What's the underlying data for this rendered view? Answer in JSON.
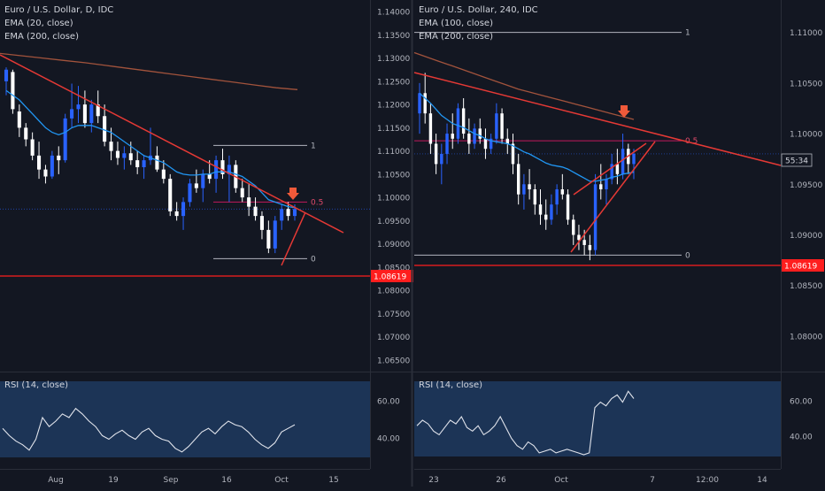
{
  "chart_data": [
    {
      "type": "candlestick",
      "title": "Euro / U.S. Dollar, D, IDC",
      "indicators": [
        "EMA (20, close)",
        "EMA (200, close)"
      ],
      "x_ticks": [
        "Aug",
        "19",
        "Sep",
        "16",
        "Oct",
        "15"
      ],
      "y_ticks": [
        "1.14000",
        "1.13500",
        "1.13000",
        "1.12500",
        "1.12000",
        "1.11500",
        "1.11000",
        "1.10500",
        "1.10000",
        "1.09500",
        "1.09000",
        "1.08500",
        "1.08000",
        "1.07500",
        "1.07000",
        "1.06500"
      ],
      "ylim": [
        1.0625,
        1.1425
      ],
      "price_label": "1.08619",
      "fib_labels": [
        "1",
        "0.5",
        "0"
      ],
      "fib_levels": [
        1.1112,
        1.099,
        1.0868
      ],
      "candles": [
        [
          1.125,
          1.128,
          1.122,
          1.1275
        ],
        [
          1.127,
          1.1275,
          1.118,
          1.119
        ],
        [
          1.1185,
          1.12,
          1.113,
          1.115
        ],
        [
          1.115,
          1.116,
          1.111,
          1.1125
        ],
        [
          1.1125,
          1.114,
          1.108,
          1.109
        ],
        [
          1.109,
          1.112,
          1.104,
          1.106
        ],
        [
          1.106,
          1.107,
          1.103,
          1.1045
        ],
        [
          1.1045,
          1.11,
          1.104,
          1.109
        ],
        [
          1.109,
          1.111,
          1.105,
          1.108
        ],
        [
          1.108,
          1.118,
          1.1075,
          1.117
        ],
        [
          1.117,
          1.1245,
          1.115,
          1.119
        ],
        [
          1.119,
          1.124,
          1.116,
          1.12
        ],
        [
          1.12,
          1.123,
          1.115,
          1.116
        ],
        [
          1.116,
          1.121,
          1.114,
          1.12
        ],
        [
          1.12,
          1.123,
          1.116,
          1.1175
        ],
        [
          1.1175,
          1.12,
          1.111,
          1.112
        ],
        [
          1.112,
          1.115,
          1.108,
          1.11
        ],
        [
          1.11,
          1.112,
          1.107,
          1.1085
        ],
        [
          1.1085,
          1.111,
          1.106,
          1.1095
        ],
        [
          1.1095,
          1.112,
          1.107,
          1.108
        ],
        [
          1.108,
          1.11,
          1.105,
          1.1065
        ],
        [
          1.1065,
          1.109,
          1.104,
          1.108
        ],
        [
          1.108,
          1.115,
          1.107,
          1.109
        ],
        [
          1.109,
          1.111,
          1.1055,
          1.106
        ],
        [
          1.106,
          1.108,
          1.103,
          1.104
        ],
        [
          1.104,
          1.105,
          1.096,
          1.097
        ],
        [
          1.097,
          1.099,
          1.095,
          1.096
        ],
        [
          1.096,
          1.1,
          1.093,
          1.099
        ],
        [
          1.099,
          1.104,
          1.098,
          1.103
        ],
        [
          1.103,
          1.106,
          1.101,
          1.102
        ],
        [
          1.102,
          1.106,
          1.099,
          1.105
        ],
        [
          1.105,
          1.108,
          1.103,
          1.104
        ],
        [
          1.104,
          1.109,
          1.101,
          1.108
        ],
        [
          1.108,
          1.1105,
          1.104,
          1.105
        ],
        [
          1.105,
          1.109,
          1.099,
          1.107
        ],
        [
          1.107,
          1.108,
          1.101,
          1.102
        ],
        [
          1.102,
          1.104,
          1.099,
          1.1
        ],
        [
          1.1,
          1.103,
          1.096,
          1.098
        ],
        [
          1.098,
          1.1,
          1.095,
          1.096
        ],
        [
          1.096,
          1.097,
          1.091,
          1.093
        ],
        [
          1.093,
          1.095,
          1.088,
          1.089
        ],
        [
          1.089,
          1.096,
          1.088,
          1.095
        ],
        [
          1.095,
          1.0985,
          1.093,
          1.0975
        ],
        [
          1.0975,
          1.099,
          1.095,
          1.096
        ],
        [
          1.096,
          1.0985,
          1.095,
          1.0975
        ]
      ],
      "ema20": [
        1.123,
        1.122,
        1.121,
        1.1195,
        1.118,
        1.1165,
        1.115,
        1.114,
        1.1135,
        1.114,
        1.115,
        1.1155,
        1.1155,
        1.1155,
        1.115,
        1.1145,
        1.114,
        1.113,
        1.112,
        1.111,
        1.11,
        1.109,
        1.1085,
        1.108,
        1.1075,
        1.1065,
        1.1055,
        1.105,
        1.1048,
        1.1048,
        1.105,
        1.105,
        1.1055,
        1.1055,
        1.1055,
        1.105,
        1.1045,
        1.1035,
        1.1025,
        1.101,
        1.0995,
        1.099,
        1.0985,
        1.098,
        1.0978
      ],
      "ema200": [
        1.131,
        1.1305,
        1.13,
        1.1295,
        1.129,
        1.1284,
        1.1278,
        1.1272,
        1.1266,
        1.126,
        1.1254,
        1.1248,
        1.1242,
        1.1236,
        1.1232
      ],
      "rsi": [
        44,
        40,
        37,
        35,
        32,
        38,
        50,
        45,
        48,
        52,
        50,
        55,
        52,
        48,
        45,
        40,
        38,
        41,
        43,
        40,
        38,
        42,
        44,
        40,
        38,
        37,
        33,
        31,
        34,
        38,
        42,
        44,
        41,
        45,
        48,
        46,
        45,
        42,
        38,
        35,
        33,
        36,
        42,
        44,
        46
      ],
      "rsi_ticks": [
        "60.00",
        "40.00"
      ]
    },
    {
      "type": "candlestick",
      "title": "Euro / U.S. Dollar, 240, IDC",
      "indicators": [
        "EMA (100, close)",
        "EMA (200, close)"
      ],
      "x_ticks": [
        "23",
        "26",
        "Oct",
        "7",
        "12:00",
        "14"
      ],
      "y_ticks": [
        "1.11000",
        "1.10500",
        "1.10000",
        "1.09500",
        "1.09000",
        "1.08500",
        "1.08000"
      ],
      "ylim": [
        1.0765,
        1.1132
      ],
      "price_label": "1.08619",
      "time_label": "55:34",
      "fib_labels": [
        "1",
        "0.5",
        "0"
      ],
      "fib_levels": [
        1.11,
        1.0993,
        1.088
      ],
      "candles": [
        [
          1.102,
          1.105,
          1.1,
          1.104
        ],
        [
          1.104,
          1.106,
          1.101,
          1.102
        ],
        [
          1.102,
          1.103,
          1.098,
          1.099
        ],
        [
          1.099,
          1.1,
          1.096,
          1.097
        ],
        [
          1.097,
          1.099,
          1.095,
          1.098
        ],
        [
          1.098,
          1.101,
          1.097,
          1.1
        ],
        [
          1.1,
          1.102,
          1.0985,
          1.0995
        ],
        [
          1.0995,
          1.103,
          1.099,
          1.1025
        ],
        [
          1.1025,
          1.1035,
          1.0995,
          1.1
        ],
        [
          1.1,
          1.1015,
          1.098,
          1.099
        ],
        [
          1.099,
          1.101,
          1.0985,
          1.1005
        ],
        [
          1.1005,
          1.1015,
          1.099,
          1.0995
        ],
        [
          1.0995,
          1.1005,
          1.0975,
          1.0985
        ],
        [
          1.0985,
          1.1,
          1.098,
          1.0995
        ],
        [
          1.0995,
          1.103,
          1.099,
          1.102
        ],
        [
          1.102,
          1.1025,
          1.099,
          1.0995
        ],
        [
          1.0995,
          1.1005,
          1.098,
          1.099
        ],
        [
          1.099,
          1.1,
          1.096,
          1.097
        ],
        [
          1.097,
          1.098,
          1.093,
          1.094
        ],
        [
          1.094,
          1.096,
          1.0925,
          1.095
        ],
        [
          1.095,
          1.0965,
          1.0935,
          1.0945
        ],
        [
          1.0945,
          1.095,
          1.092,
          1.093
        ],
        [
          1.093,
          1.0945,
          1.091,
          1.092
        ],
        [
          1.092,
          1.0935,
          1.0905,
          1.0915
        ],
        [
          1.0915,
          1.094,
          1.091,
          1.093
        ],
        [
          1.093,
          1.095,
          1.092,
          1.0945
        ],
        [
          1.0945,
          1.096,
          1.0935,
          1.094
        ],
        [
          1.094,
          1.0945,
          1.091,
          1.0915
        ],
        [
          1.0915,
          1.092,
          1.089,
          1.09
        ],
        [
          1.09,
          1.091,
          1.0885,
          1.0895
        ],
        [
          1.0895,
          1.0905,
          1.088,
          1.089
        ],
        [
          1.089,
          1.09,
          1.0875,
          1.0885
        ],
        [
          1.0885,
          1.096,
          1.088,
          1.095
        ],
        [
          1.095,
          1.097,
          1.0935,
          1.0945
        ],
        [
          1.0945,
          1.096,
          1.093,
          1.0955
        ],
        [
          1.0955,
          1.098,
          1.095,
          1.097
        ],
        [
          1.097,
          1.0985,
          1.095,
          1.096
        ],
        [
          1.096,
          1.1,
          1.0955,
          1.0985
        ],
        [
          1.0985,
          1.099,
          1.096,
          1.097
        ],
        [
          1.097,
          1.0985,
          1.0955,
          1.098
        ]
      ],
      "ema100": [
        1.104,
        1.1035,
        1.103,
        1.1024,
        1.1018,
        1.1014,
        1.101,
        1.1008,
        1.1006,
        1.1003,
        1.1,
        1.0998,
        1.0995,
        1.0993,
        1.0992,
        1.0991,
        1.099,
        1.0988,
        1.0985,
        1.0982,
        1.098,
        1.0977,
        1.0974,
        1.0971,
        1.0969,
        1.0968,
        1.0967,
        1.0965,
        1.0962,
        1.0959,
        1.0956,
        1.0953,
        1.0953,
        1.0954,
        1.0955,
        1.0957,
        1.0958,
        1.096,
        1.0961,
        1.0962
      ],
      "ema200": [
        1.108,
        1.1076,
        1.1072,
        1.1068,
        1.1064,
        1.106,
        1.1056,
        1.1052,
        1.1048,
        1.1044,
        1.1041,
        1.1038,
        1.1035,
        1.1032,
        1.1029,
        1.1026,
        1.1023,
        1.102,
        1.1017,
        1.1014
      ],
      "rsi": [
        45,
        48,
        46,
        42,
        40,
        44,
        48,
        46,
        50,
        44,
        42,
        45,
        40,
        42,
        45,
        50,
        44,
        38,
        34,
        32,
        36,
        34,
        30,
        31,
        32,
        30,
        31,
        32,
        31,
        30,
        29,
        30,
        55,
        58,
        56,
        60,
        62,
        58,
        64,
        60
      ],
      "rsi_ticks": [
        "60.00",
        "40.00"
      ]
    }
  ]
}
